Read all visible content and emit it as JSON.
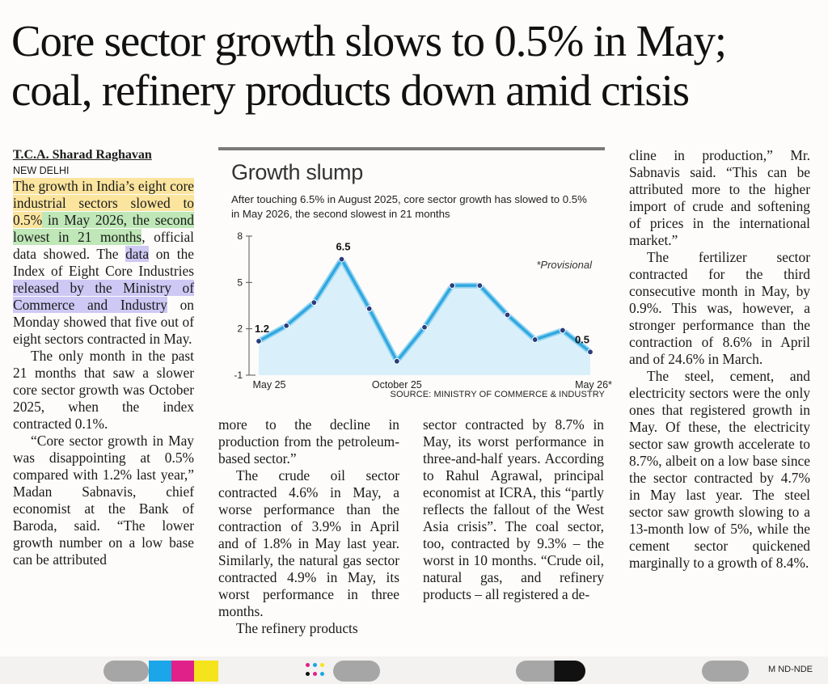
{
  "headline": {
    "line1": "Core sector growth slows to 0.5% in May;",
    "line2": "coal, refinery products down amid crisis"
  },
  "byline": "T.C.A. Sharad Raghavan",
  "dateline": "NEW DELHI",
  "col1": {
    "p1_a": "The growth in India’s eight core industrial sectors slowed to 0.5%",
    "p1_b": " in May 2026, the second lowest in 21 months",
    "p1_c": ", official data showed. The ",
    "p1_d": "data",
    "p1_e": " on the Index of Eight Core Industries ",
    "p1_f": "released by the Ministry of Commerce and Industry",
    "p1_g": " on Monday showed that five out of eight sectors contracted in May.",
    "p2": "The only month in the past 21 months that saw a slower core sector growth was October 2025, when the index contracted 0.1%.",
    "p3": "“Core sector growth in May was disappointing at 0.5% compared with 1.2% last year,” Madan Sabnavis, chief economist at the Bank of Baroda, said. “The lower growth number on a low base can be attributed"
  },
  "col2": {
    "p1": "more to the decline in production from the petroleum-based sector.”",
    "p2": "The crude oil sector contracted 4.6% in May, a worse performance than the contraction of 3.9% in April and of 1.8% in May last year. Similarly, the natural gas sector contracted 4.9% in May, its worst performance in three months.",
    "p3": "The refinery products"
  },
  "col3": {
    "p1": "sector contracted by 8.7% in May, its worst performance in three-and-half years. According to Rahul Agrawal, principal economist at ICRA, this “partly reflects the fallout of the West Asia crisis”. The coal sector, too, contracted by 9.3% – the worst in 10 months. “Crude oil, natural gas, and refinery products – all registered a de-"
  },
  "col4": {
    "p1": "cline in production,” Mr. Sabnavis said. “This can be attributed more to the higher import of crude and softening of prices in the international market.”",
    "p2": "The fertilizer sector contracted for the third consecutive month in May, by 0.9%. This was, however, a stronger performance than the contraction of 8.6% in April and of 24.6% in March.",
    "p3": "The steel, cement, and electricity sectors were the only ones that registered growth in May. Of these, the electricity sector saw growth accelerate to 8.7%, albeit on a low base since the sector contracted by 4.7% in May last year. The steel sector saw growth slowing to a 13-month low of 5%, while the cement sector quickened marginally to a growth of 8.4%."
  },
  "chart_data": {
    "type": "line",
    "title": "Growth slump",
    "subtitle": "After touching 6.5% in August 2025, core sector growth has slowed to 0.5% in May 2026, the second slowest in 21 months",
    "note": "*Provisional",
    "source": "SOURCE: MINISTRY OF COMMERCE & INDUSTRY",
    "x_tick_labels": [
      "May 25",
      "October 25",
      "May 26*"
    ],
    "y_ticks": [
      "8",
      "5",
      "2",
      "-1"
    ],
    "ylim": [
      -1,
      8
    ],
    "values": [
      1.2,
      2.2,
      3.7,
      6.5,
      3.3,
      -0.1,
      2.1,
      4.8,
      4.8,
      2.9,
      1.3,
      1.9,
      0.5
    ],
    "point_labels": [
      {
        "index": 0,
        "text": "1.2"
      },
      {
        "index": 3,
        "text": "6.5"
      },
      {
        "index": 12,
        "text": "0.5"
      }
    ],
    "colors": {
      "line": "#2fa6de",
      "marker": "#2a3d7c",
      "fill": "#d5eef9",
      "outline": "#8fd3f1"
    }
  },
  "footer": {
    "code": "M ND-NDE",
    "colors": {
      "cyan": "#1aa6e8",
      "magenta": "#e0218a",
      "yellow": "#f5e31b",
      "gray": "#a6a6a6",
      "black": "#111111"
    }
  }
}
